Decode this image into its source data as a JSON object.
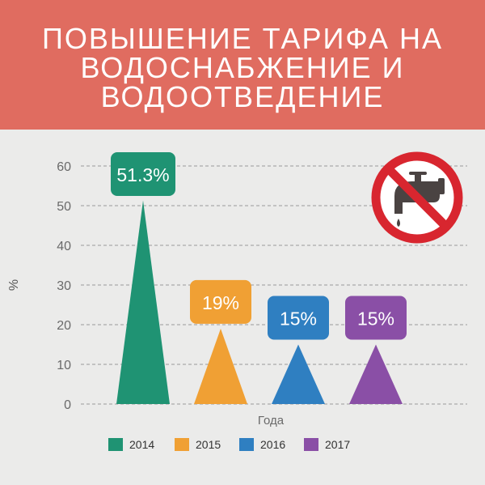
{
  "header": {
    "title_lines": [
      "ПОВЫШЕНИЕ ТАРИФА НА",
      "ВОДОСНАБЖЕНИЕ И",
      "ВОДООТВЕДЕНИЕ"
    ]
  },
  "icon": "no-water-tap-icon",
  "colors": {
    "header_bg": "#e06c60",
    "background": "#ebebea",
    "no_sign": "#d8262f"
  },
  "chart_data": {
    "type": "bar",
    "mark_shape": "triangle",
    "categories": [
      "2014",
      "2015",
      "2016",
      "2017"
    ],
    "values": [
      51.3,
      19,
      15,
      15
    ],
    "data_labels": [
      "51.3%",
      "19%",
      "15%",
      "15%"
    ],
    "colors": [
      "#1f9373",
      "#f0a034",
      "#2f7fc1",
      "#8a4fa6"
    ],
    "xlabel": "Года",
    "ylabel": "%",
    "ylim": [
      0,
      60
    ],
    "yticks": [
      0,
      10,
      20,
      30,
      40,
      50,
      60
    ],
    "grid": true,
    "legend": [
      {
        "label": "2014",
        "color": "#1f9373"
      },
      {
        "label": "2015",
        "color": "#f0a034"
      },
      {
        "label": "2016",
        "color": "#2f7fc1"
      },
      {
        "label": "2017",
        "color": "#8a4fa6"
      }
    ],
    "legend_position": "bottom"
  }
}
